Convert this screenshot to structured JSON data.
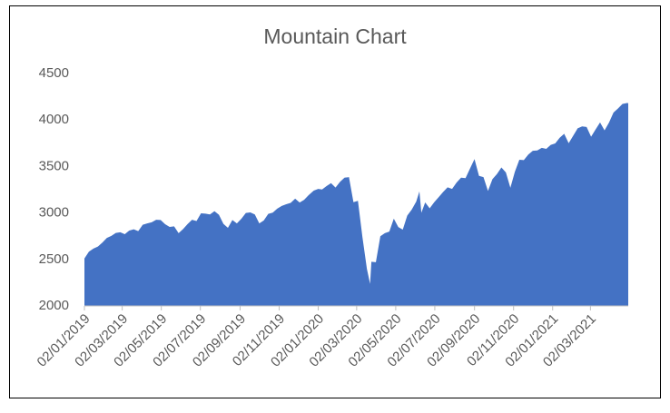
{
  "chart_data": {
    "type": "area",
    "title": "Mountain Chart",
    "color": "#4472c4",
    "x": [
      "02/01/2019",
      "09/01/2019",
      "16/01/2019",
      "23/01/2019",
      "30/01/2019",
      "06/02/2019",
      "13/02/2019",
      "20/02/2019",
      "27/02/2019",
      "06/03/2019",
      "13/03/2019",
      "20/03/2019",
      "27/03/2019",
      "03/04/2019",
      "10/04/2019",
      "17/04/2019",
      "24/04/2019",
      "01/05/2019",
      "08/05/2019",
      "15/05/2019",
      "22/05/2019",
      "29/05/2019",
      "05/06/2019",
      "12/06/2019",
      "19/06/2019",
      "26/06/2019",
      "03/07/2019",
      "10/07/2019",
      "17/07/2019",
      "24/07/2019",
      "31/07/2019",
      "07/08/2019",
      "14/08/2019",
      "21/08/2019",
      "28/08/2019",
      "04/09/2019",
      "11/09/2019",
      "18/09/2019",
      "25/09/2019",
      "02/10/2019",
      "09/10/2019",
      "16/10/2019",
      "23/10/2019",
      "30/10/2019",
      "06/11/2019",
      "13/11/2019",
      "20/11/2019",
      "27/11/2019",
      "04/12/2019",
      "11/12/2019",
      "18/12/2019",
      "26/12/2019",
      "02/01/2020",
      "08/01/2020",
      "15/01/2020",
      "22/01/2020",
      "29/01/2020",
      "05/02/2020",
      "12/02/2020",
      "19/02/2020",
      "26/02/2020",
      "04/03/2020",
      "11/03/2020",
      "18/03/2020",
      "23/03/2020",
      "25/03/2020",
      "01/04/2020",
      "08/04/2020",
      "15/04/2020",
      "22/04/2020",
      "29/04/2020",
      "06/05/2020",
      "13/05/2020",
      "20/05/2020",
      "27/05/2020",
      "03/06/2020",
      "08/06/2020",
      "11/06/2020",
      "17/06/2020",
      "24/06/2020",
      "01/07/2020",
      "08/07/2020",
      "15/07/2020",
      "22/07/2020",
      "29/07/2020",
      "05/08/2020",
      "12/08/2020",
      "19/08/2020",
      "26/08/2020",
      "02/09/2020",
      "09/09/2020",
      "16/09/2020",
      "23/09/2020",
      "30/09/2020",
      "07/10/2020",
      "14/10/2020",
      "21/10/2020",
      "28/10/2020",
      "04/11/2020",
      "11/11/2020",
      "18/11/2020",
      "25/11/2020",
      "02/12/2020",
      "09/12/2020",
      "16/12/2020",
      "23/12/2020",
      "30/12/2020",
      "06/01/2021",
      "13/01/2021",
      "20/01/2021",
      "27/01/2021",
      "03/02/2021",
      "10/02/2021",
      "17/02/2021",
      "24/02/2021",
      "03/03/2021",
      "10/03/2021",
      "17/03/2021",
      "24/03/2021",
      "31/03/2021",
      "07/04/2021",
      "14/04/2021",
      "21/04/2021",
      "28/04/2021",
      "30/04/2021"
    ],
    "values": [
      2510,
      2584,
      2616,
      2638,
      2681,
      2731,
      2753,
      2785,
      2792,
      2771,
      2811,
      2824,
      2805,
      2873,
      2888,
      2900,
      2927,
      2924,
      2879,
      2850,
      2856,
      2783,
      2826,
      2880,
      2926,
      2913,
      2996,
      2993,
      2984,
      3019,
      2980,
      2883,
      2840,
      2924,
      2887,
      2937,
      3000,
      3006,
      2984,
      2887,
      2919,
      2990,
      3004,
      3046,
      3076,
      3094,
      3108,
      3153,
      3112,
      3141,
      3191,
      3240,
      3258,
      3253,
      3289,
      3321,
      3273,
      3334,
      3379,
      3386,
      3116,
      3130,
      2741,
      2398,
      2237,
      2475,
      2470,
      2750,
      2783,
      2799,
      2939,
      2848,
      2820,
      2972,
      3036,
      3122,
      3232,
      3002,
      3113,
      3050,
      3115,
      3169,
      3226,
      3276,
      3258,
      3327,
      3380,
      3375,
      3478,
      3580,
      3399,
      3385,
      3237,
      3363,
      3419,
      3489,
      3435,
      3271,
      3443,
      3572,
      3568,
      3629,
      3669,
      3672,
      3701,
      3690,
      3732,
      3748,
      3809,
      3852,
      3750,
      3830,
      3910,
      3931,
      3925,
      3820,
      3898,
      3974,
      3889,
      3973,
      4080,
      4124,
      4173,
      4183,
      4181
    ],
    "xlim": [
      "02/01/2019",
      "30/04/2021"
    ],
    "xticks": [
      "02/01/2019",
      "02/03/2019",
      "02/05/2019",
      "02/07/2019",
      "02/09/2019",
      "02/11/2019",
      "02/01/2020",
      "02/03/2020",
      "02/05/2020",
      "02/07/2020",
      "02/09/2020",
      "02/11/2020",
      "02/01/2021",
      "02/03/2021"
    ],
    "ylim": [
      2000,
      4500
    ],
    "yticks": [
      2000,
      2500,
      3000,
      3500,
      4000,
      4500
    ]
  }
}
